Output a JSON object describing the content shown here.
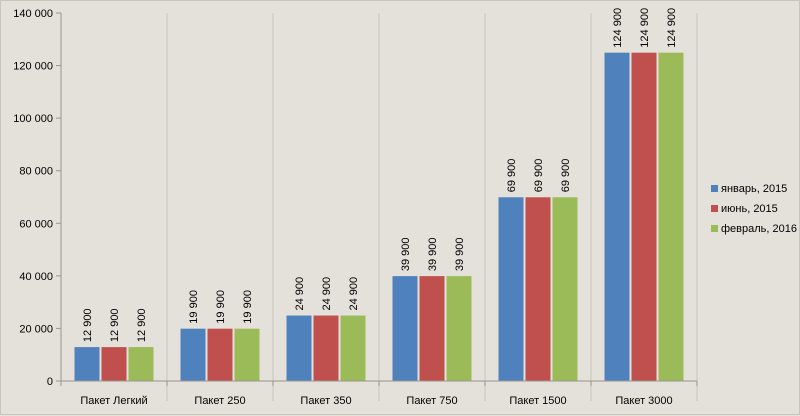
{
  "chart_data": {
    "type": "bar",
    "title": "",
    "xlabel": "",
    "ylabel": "",
    "categories": [
      "Пакет Легкий",
      "Пакет 250",
      "Пакет 350",
      "Пакет 750",
      "Пакет 1500",
      "Пакет 3000"
    ],
    "series": [
      {
        "name": "январь, 2015",
        "color": "#4f81bd",
        "values": [
          12900,
          19900,
          24900,
          39900,
          69900,
          124900
        ],
        "labels": [
          "12 900",
          "19 900",
          "24 900",
          "39 900",
          "69 900",
          "124 900"
        ]
      },
      {
        "name": "июнь, 2015",
        "color": "#c0504d",
        "values": [
          12900,
          19900,
          24900,
          39900,
          69900,
          124900
        ],
        "labels": [
          "12 900",
          "19 900",
          "24 900",
          "39 900",
          "69 900",
          "124 900"
        ]
      },
      {
        "name": "февраль, 2016",
        "color": "#9bbb59",
        "values": [
          12900,
          19900,
          24900,
          39900,
          69900,
          124900
        ],
        "labels": [
          "12 900",
          "19 900",
          "24 900",
          "39 900",
          "69 900",
          "124 900"
        ]
      }
    ],
    "ylim": [
      0,
      140000
    ],
    "yticks": [
      0,
      20000,
      40000,
      60000,
      80000,
      100000,
      120000,
      140000
    ],
    "ytick_labels": [
      "0",
      "20 000",
      "40 000",
      "60 000",
      "80 000",
      "100 000",
      "120 000",
      "140 000"
    ],
    "grid": "vertical category separators",
    "legend_position": "right",
    "data_labels": "rotated 90 degrees above bars"
  }
}
